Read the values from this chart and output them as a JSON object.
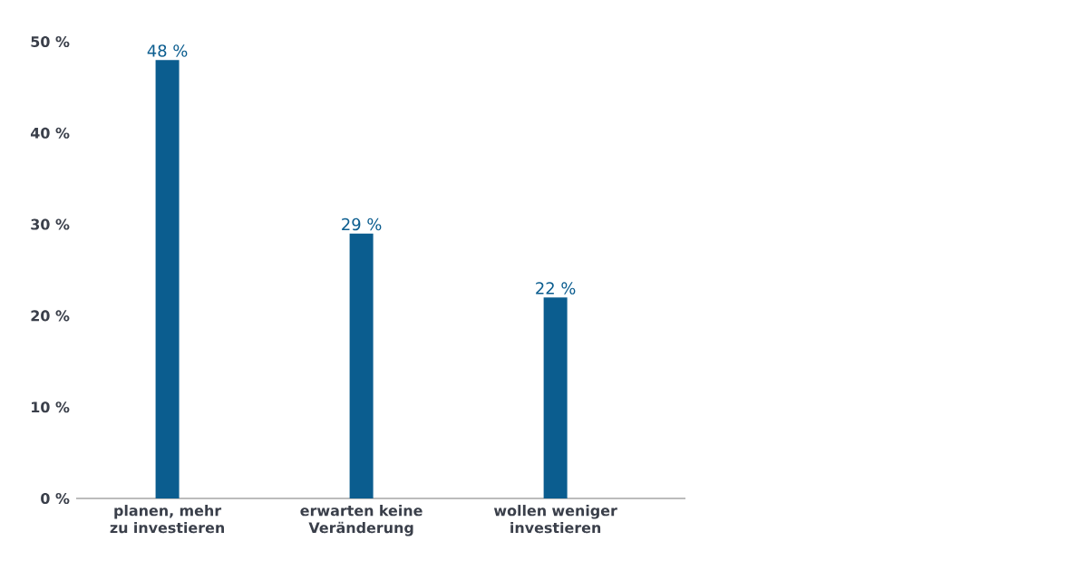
{
  "chart_data": {
    "type": "bar",
    "categories": [
      "planen, mehr zu investieren",
      "erwarten keine Veränderung",
      "wollen weniger investieren"
    ],
    "values": [
      48,
      29,
      22
    ],
    "value_labels": [
      "48 %",
      "29 %",
      "22 %"
    ],
    "color": "#0b5d8f",
    "ylim": [
      0,
      50
    ],
    "yticks": [
      {
        "value": 0,
        "label": "0 %"
      },
      {
        "value": 10,
        "label": "10 %"
      },
      {
        "value": 20,
        "label": "20 %"
      },
      {
        "value": 30,
        "label": "30 %"
      },
      {
        "value": 40,
        "label": "40 %"
      },
      {
        "value": 50,
        "label": "50 %"
      }
    ]
  }
}
